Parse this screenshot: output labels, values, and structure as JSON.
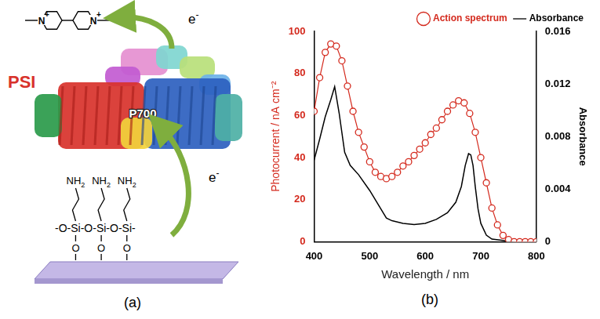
{
  "panel_a": {
    "label": "(a)",
    "complex": "PSI",
    "center": "P700",
    "electron": "e",
    "electron_charge": "-",
    "viologen": {
      "atom": "N",
      "charge": "+"
    },
    "linker": {
      "group": "NH",
      "group_subscript": "2",
      "chain": "-O-Si-O-Si-O-Si-",
      "oxygen": "O"
    }
  },
  "chart_data": {
    "type": "line",
    "label": "(b)",
    "x_label": "Wavelength / nm",
    "y_label": "Photocurrent / nA cm⁻²",
    "y2_label": "Absorbance",
    "xlim": [
      400,
      800
    ],
    "xticks": [
      400,
      500,
      600,
      700,
      800
    ],
    "ylim": [
      0,
      100
    ],
    "yticks": [
      0,
      20,
      40,
      60,
      80,
      100
    ],
    "y2lim": [
      0,
      0.016
    ],
    "y2ticks": [
      0,
      0.004,
      0.008,
      0.012,
      0.016
    ],
    "grid": false,
    "legend": "top",
    "series": [
      {
        "name": "Action spectrum",
        "color": "#d42a1e",
        "marker": "circle",
        "line_style": "solid",
        "axis": "y",
        "x": [
          400,
          410,
          420,
          430,
          440,
          450,
          460,
          470,
          480,
          490,
          500,
          510,
          520,
          530,
          540,
          550,
          560,
          570,
          580,
          590,
          600,
          610,
          620,
          630,
          640,
          650,
          660,
          670,
          680,
          690,
          700,
          710,
          720,
          730,
          740,
          750,
          760,
          770,
          780,
          790,
          800
        ],
        "values": [
          62,
          78,
          90,
          94,
          93,
          86,
          74,
          62,
          52,
          45,
          38,
          33,
          31,
          30,
          31,
          33,
          36,
          38,
          41,
          44,
          47,
          51,
          54,
          58,
          62,
          65,
          67,
          66,
          61,
          52,
          40,
          28,
          16,
          8,
          3,
          1,
          0,
          0,
          0,
          0,
          0
        ]
      },
      {
        "name": "Absorbance",
        "color": "#000000",
        "marker": "none",
        "line_style": "solid",
        "axis": "y2",
        "x": [
          400,
          410,
          420,
          430,
          437,
          445,
          455,
          465,
          480,
          500,
          520,
          530,
          540,
          560,
          580,
          600,
          620,
          640,
          655,
          665,
          672,
          678,
          682,
          686,
          690,
          695,
          700,
          710,
          720,
          740,
          760
        ],
        "values": [
          0.0062,
          0.0078,
          0.0095,
          0.0108,
          0.0118,
          0.0098,
          0.0068,
          0.0058,
          0.0051,
          0.0039,
          0.0025,
          0.0018,
          0.0016,
          0.0014,
          0.0013,
          0.0014,
          0.0017,
          0.0022,
          0.003,
          0.0042,
          0.0058,
          0.0067,
          0.0066,
          0.0058,
          0.0042,
          0.0025,
          0.0014,
          0.0005,
          0.0002,
          0.0001,
          0
        ]
      }
    ]
  }
}
